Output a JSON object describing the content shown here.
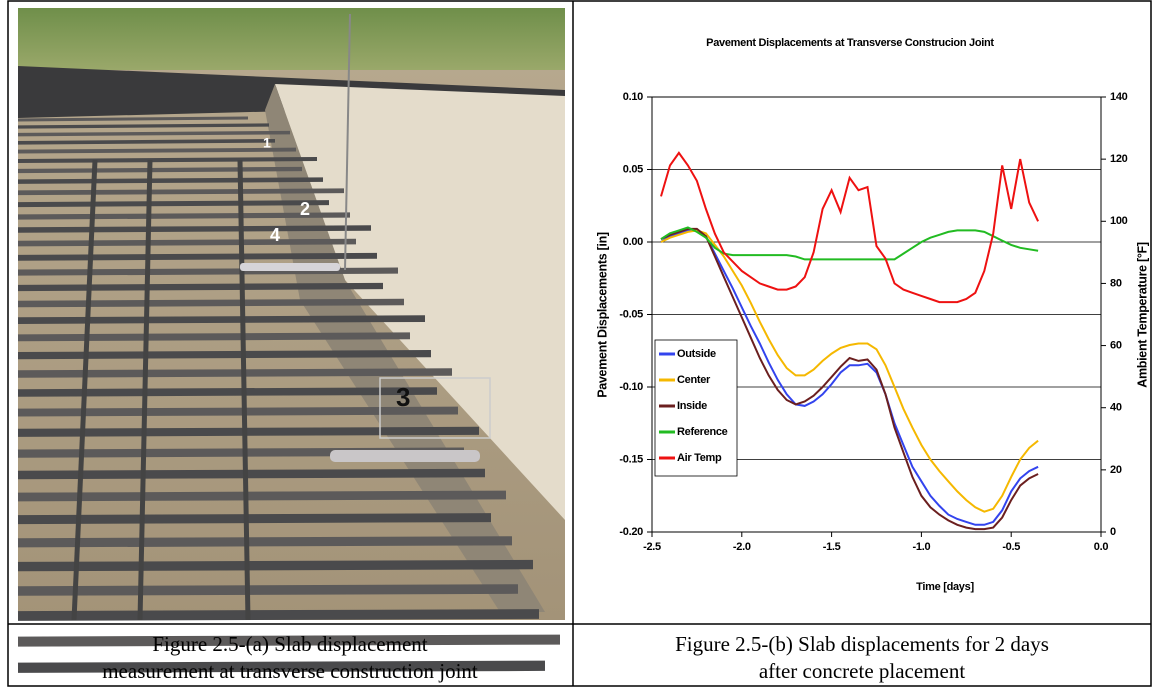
{
  "photo": {
    "labels": [
      "1",
      "2",
      "4",
      "3"
    ]
  },
  "chart_data": {
    "type": "line",
    "title": "Pavement Displacements at Transverse Construcion Joint",
    "x_label": "Time [days]",
    "y_label": "Pavement Displacements [in]",
    "y2_label": "Ambient Temperature [°F]",
    "xlim": [
      -2.5,
      0.0
    ],
    "xticks": [
      -2.5,
      {
        "value": -2.0,
        "label": "-2.0"
      },
      -1.5,
      {
        "value": -1.0,
        "label": "-1.0"
      },
      -0.5,
      {
        "value": 0.0,
        "label": "0.0"
      }
    ],
    "ylim": [
      -0.2,
      0.1
    ],
    "yticks": [
      {
        "value": -0.2,
        "label": "-0.20"
      },
      -0.15,
      {
        "value": -0.1,
        "label": "-0.10"
      },
      -0.05,
      {
        "value": 0.0,
        "label": "0.00"
      },
      0.05,
      {
        "value": 0.1,
        "label": "0.10"
      }
    ],
    "y2lim": [
      0,
      140
    ],
    "y2ticks": [
      0,
      20,
      40,
      60,
      80,
      100,
      120,
      140
    ],
    "grid": true,
    "legend": "lower-left",
    "x": [
      -2.45,
      -2.4,
      -2.35,
      -2.3,
      -2.25,
      -2.2,
      -2.15,
      -2.1,
      -2.05,
      -2.0,
      -1.95,
      -1.9,
      -1.85,
      -1.8,
      -1.75,
      -1.7,
      -1.65,
      -1.6,
      -1.55,
      -1.5,
      -1.45,
      -1.4,
      -1.35,
      -1.3,
      -1.25,
      -1.2,
      -1.15,
      -1.1,
      -1.05,
      -1.0,
      -0.95,
      -0.9,
      -0.85,
      -0.8,
      -0.75,
      -0.7,
      -0.65,
      -0.6,
      -0.55,
      -0.5,
      -0.45,
      -0.4,
      -0.35
    ],
    "series": [
      {
        "name": "Outside",
        "color": "#3344ee",
        "values": [
          0.0,
          0.004,
          0.006,
          0.008,
          0.008,
          0.004,
          -0.008,
          -0.02,
          -0.032,
          -0.045,
          -0.058,
          -0.07,
          -0.083,
          -0.095,
          -0.105,
          -0.112,
          -0.113,
          -0.11,
          -0.105,
          -0.098,
          -0.09,
          -0.085,
          -0.085,
          -0.084,
          -0.09,
          -0.105,
          -0.125,
          -0.14,
          -0.155,
          -0.165,
          -0.175,
          -0.182,
          -0.188,
          -0.191,
          -0.193,
          -0.195,
          -0.195,
          -0.193,
          -0.185,
          -0.172,
          -0.163,
          -0.158,
          -0.155
        ]
      },
      {
        "name": "Center",
        "color": "#f5b800",
        "values": [
          0.0,
          0.003,
          0.005,
          0.007,
          0.008,
          0.006,
          -0.002,
          -0.01,
          -0.02,
          -0.03,
          -0.042,
          -0.055,
          -0.067,
          -0.078,
          -0.087,
          -0.092,
          -0.092,
          -0.088,
          -0.082,
          -0.077,
          -0.073,
          -0.071,
          -0.07,
          -0.07,
          -0.074,
          -0.085,
          -0.1,
          -0.115,
          -0.128,
          -0.14,
          -0.15,
          -0.158,
          -0.165,
          -0.172,
          -0.178,
          -0.183,
          -0.186,
          -0.184,
          -0.175,
          -0.162,
          -0.15,
          -0.142,
          -0.137
        ]
      },
      {
        "name": "Inside",
        "color": "#6b1f1f",
        "values": [
          0.002,
          0.005,
          0.007,
          0.009,
          0.009,
          0.004,
          -0.01,
          -0.024,
          -0.038,
          -0.052,
          -0.066,
          -0.08,
          -0.092,
          -0.102,
          -0.109,
          -0.112,
          -0.11,
          -0.106,
          -0.1,
          -0.093,
          -0.086,
          -0.08,
          -0.082,
          -0.081,
          -0.088,
          -0.105,
          -0.128,
          -0.145,
          -0.162,
          -0.175,
          -0.183,
          -0.188,
          -0.192,
          -0.195,
          -0.197,
          -0.198,
          -0.198,
          -0.197,
          -0.19,
          -0.178,
          -0.168,
          -0.163,
          -0.16
        ]
      },
      {
        "name": "Reference",
        "color": "#22bb22",
        "values": [
          0.002,
          0.006,
          0.008,
          0.01,
          0.007,
          0.003,
          -0.004,
          -0.008,
          -0.009,
          -0.009,
          -0.009,
          -0.009,
          -0.009,
          -0.009,
          -0.009,
          -0.01,
          -0.012,
          -0.012,
          -0.012,
          -0.012,
          -0.012,
          -0.012,
          -0.012,
          -0.012,
          -0.012,
          -0.012,
          -0.012,
          -0.008,
          -0.004,
          0.0,
          0.003,
          0.005,
          0.007,
          0.008,
          0.008,
          0.008,
          0.007,
          0.004,
          0.001,
          -0.002,
          -0.004,
          -0.005,
          -0.006
        ]
      },
      {
        "name": "Air Temp",
        "color": "#ee1111",
        "axis": "y2",
        "values": [
          108,
          118,
          122,
          118,
          113,
          104,
          96,
          90,
          87,
          84,
          82,
          80,
          79,
          78,
          78,
          79,
          82,
          90,
          104,
          110,
          103,
          114,
          110,
          111,
          92,
          88,
          80,
          78,
          77,
          76,
          75,
          74,
          74,
          74,
          75,
          77,
          84,
          96,
          118,
          104,
          120,
          106,
          100
        ]
      }
    ]
  },
  "captions": [
    [
      "Figure 2.5-(a) Slab displacement",
      "measurement at transverse construction joint"
    ],
    [
      "Figure 2.5-(b) Slab displacements for 2 days",
      "after concrete placement"
    ]
  ]
}
